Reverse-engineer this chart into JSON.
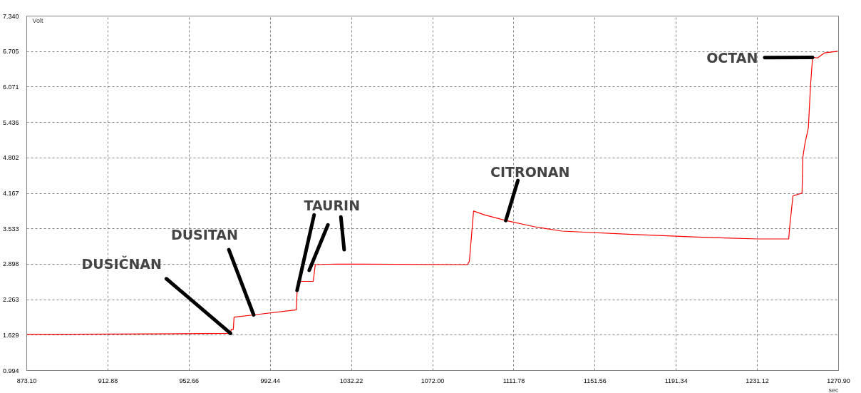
{
  "chart_data": {
    "type": "line",
    "xlabel": "sec",
    "ylabel": "Volt",
    "x": [
      873.1,
      936.25,
      972.97,
      973.31,
      974.34,
      974.69,
      984.3,
      1005.23,
      1005.58,
      1006.61,
      1013.47,
      1014.5,
      1024.8,
      1088.97,
      1090.0,
      1092.06,
      1097.55,
      1107.85,
      1121.6,
      1135.3,
      1169.62,
      1203.94,
      1231.39,
      1246.49,
      1246.84,
      1248.55,
      1253.01,
      1253.36,
      1254.39,
      1256.11,
      1257.14,
      1258.17,
      1260.57,
      1264.0,
      1270.52
    ],
    "series": [
      {
        "color": "#ff0000",
        "values": [
          1.64,
          1.65,
          1.66,
          1.73,
          1.73,
          1.95,
          1.99,
          2.08,
          2.43,
          2.59,
          2.59,
          2.89,
          2.9,
          2.89,
          2.95,
          3.85,
          3.78,
          3.68,
          3.57,
          3.49,
          3.43,
          3.38,
          3.35,
          3.35,
          3.52,
          4.12,
          4.17,
          4.8,
          5.05,
          5.34,
          6.08,
          6.6,
          6.59,
          6.68,
          6.71
        ]
      }
    ],
    "annotations": [
      {
        "text": "DUSIČNAN",
        "x": 972.97,
        "y": 1.66
      },
      {
        "text": "DUSITAN",
        "x": 984.3,
        "y": 1.99
      },
      {
        "text": "TAURIN",
        "x": 1005.58,
        "y": 2.43
      },
      {
        "text": "CITRONAN",
        "x": 1107.85,
        "y": 3.68
      },
      {
        "text": "OCTAN",
        "x": 1258.17,
        "y": 6.6
      }
    ],
    "xlim": [
      873.1,
      1270.9
    ],
    "ylim": [
      0.994,
      7.34
    ],
    "xticks": [
      {
        "value": 873.1,
        "label": "873.10"
      },
      912.88,
      952.66,
      992.44,
      1032.22,
      {
        "value": 1072.0,
        "label": "1072.00"
      },
      1111.78,
      1151.56,
      1191.34,
      1231.12,
      {
        "value": 1270.9,
        "label": "1270.90"
      }
    ],
    "yticks": [
      0.994,
      1.629,
      2.263,
      2.898,
      3.533,
      4.167,
      4.802,
      5.436,
      6.071,
      6.705,
      {
        "value": 7.34,
        "label": "7.340"
      }
    ],
    "grid": true,
    "marker": "none",
    "line_style": "solid"
  }
}
